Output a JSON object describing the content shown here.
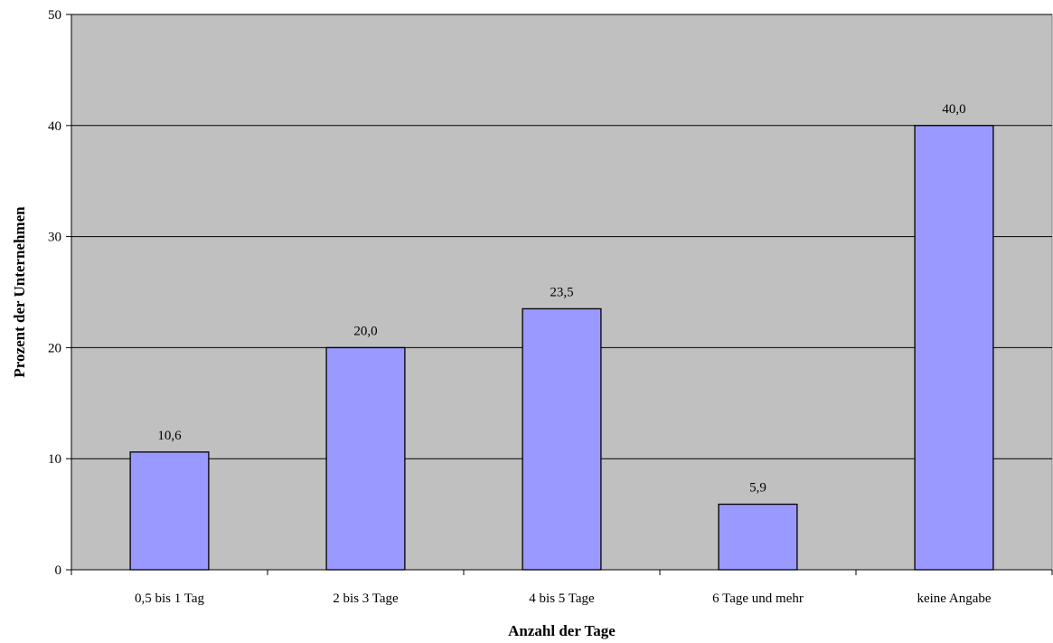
{
  "chart_data": {
    "type": "bar",
    "categories": [
      "0,5 bis 1 Tag",
      "2 bis 3 Tage",
      "4 bis 5 Tage",
      "6 Tage und mehr",
      "keine Angabe"
    ],
    "values": [
      10.6,
      20.0,
      23.5,
      5.9,
      40.0
    ],
    "value_labels": [
      "10,6",
      "20,0",
      "23,5",
      "5,9",
      "40,0"
    ],
    "xlabel": "Anzahl der Tage",
    "ylabel": "Prozent der Unternehmen",
    "ylim": [
      0,
      50
    ],
    "yticks": [
      0,
      10,
      20,
      30,
      40,
      50
    ],
    "ytick_labels": [
      "0",
      "10",
      "20",
      "30",
      "40",
      "50"
    ],
    "grid": true,
    "legend": "none",
    "colors": {
      "plot_background": "#c0c0c0",
      "bar_fill": "#9999ff",
      "bar_stroke": "#000000",
      "gridline": "#000000"
    }
  }
}
